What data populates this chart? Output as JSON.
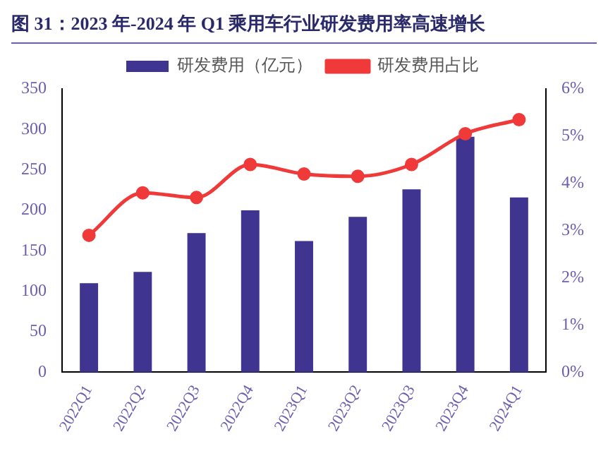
{
  "chart_data": {
    "type": "bar",
    "title": "图 31：2023 年-2024 年 Q1 乘用车行业研发费用率高速增长",
    "categories": [
      "2022Q1",
      "2022Q2",
      "2022Q3",
      "2022Q4",
      "2023Q1",
      "2023Q2",
      "2023Q3",
      "2023Q4",
      "2024Q1"
    ],
    "series": [
      {
        "name": "研发费用（亿元）",
        "color": "#3f3590",
        "values": [
          110,
          124,
          172,
          200,
          162,
          192,
          226,
          291,
          216
        ]
      },
      {
        "name": "研发费用占比",
        "type": "line",
        "axis": "y2",
        "color": "#f03a3a",
        "marker": "circle",
        "values": [
          2.9,
          3.8,
          3.7,
          4.4,
          4.2,
          4.15,
          4.4,
          5.05,
          5.35
        ]
      }
    ],
    "ylim": [
      0,
      350
    ],
    "yticks": [
      0,
      50,
      100,
      150,
      200,
      250,
      300,
      350
    ],
    "y2lim": [
      0,
      6
    ],
    "y2ticks": [
      {
        "value": 0,
        "label": "0%"
      },
      {
        "value": 1,
        "label": "1%"
      },
      {
        "value": 2,
        "label": "2%"
      },
      {
        "value": 3,
        "label": "3%"
      },
      {
        "value": 4,
        "label": "4%"
      },
      {
        "value": 5,
        "label": "5%"
      },
      {
        "value": 6,
        "label": "6%"
      }
    ],
    "legend": "top",
    "grid": false
  }
}
